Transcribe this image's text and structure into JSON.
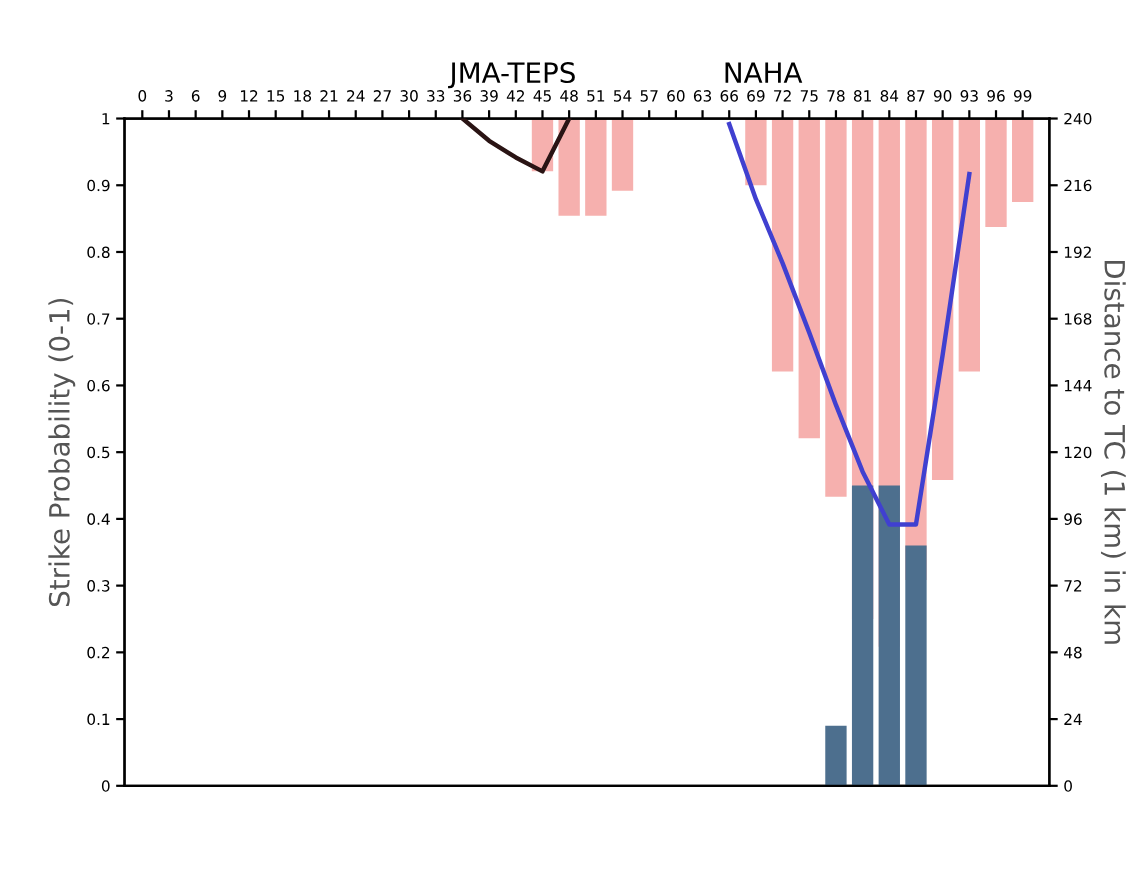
{
  "chart_data": {
    "type": "bar",
    "title": "JMA-TEPS",
    "subtitle": "NAHA",
    "ylabel": "Strike Probability (0-1)",
    "y2label": "Distance to TC (1 km) in km",
    "xlim": [
      -2,
      102
    ],
    "xticks": [
      0,
      3,
      6,
      9,
      12,
      15,
      18,
      21,
      24,
      27,
      30,
      33,
      36,
      39,
      42,
      45,
      48,
      51,
      54,
      57,
      60,
      63,
      66,
      69,
      72,
      75,
      78,
      81,
      84,
      87,
      90,
      93,
      96,
      99
    ],
    "ylim": [
      0,
      1
    ],
    "yticks": [
      0,
      0.1,
      0.2,
      0.3,
      0.4,
      0.5,
      0.6,
      0.7,
      0.8,
      0.9,
      1
    ],
    "y2lim": [
      0,
      240
    ],
    "y2ticks": [
      0,
      24,
      48,
      72,
      96,
      120,
      144,
      168,
      192,
      216,
      240
    ],
    "grid": false,
    "legend": false,
    "series": [
      {
        "axis": "y2",
        "color": "#f6b0ae",
        "x": [
          45,
          48,
          51,
          54,
          69,
          72,
          75,
          78,
          81,
          84,
          87,
          90,
          93,
          96,
          99
        ],
        "base": [
          221,
          205,
          205,
          214,
          216,
          149,
          125,
          104,
          60,
          50,
          74,
          110,
          149,
          201,
          210
        ],
        "values": [
          19,
          35,
          35,
          26,
          24,
          91,
          115,
          136,
          180,
          190,
          166,
          130,
          91,
          39,
          30
        ]
      },
      {
        "axis": "y",
        "color": "#4d6f8e",
        "x": [
          78,
          81,
          84,
          87
        ],
        "values": [
          0.09,
          0.45,
          0.45,
          0.36
        ]
      },
      {
        "type": "line",
        "axis": "y2",
        "color": "#2a1414",
        "x": [
          36,
          39,
          42,
          45,
          48
        ],
        "values": [
          240,
          232,
          226,
          221,
          240
        ]
      },
      {
        "type": "line",
        "axis": "y2",
        "color": "#4040d0",
        "x": [
          66,
          69,
          72,
          75,
          78,
          81,
          84,
          87,
          90,
          93
        ],
        "values": [
          238,
          211,
          188,
          163,
          137,
          113,
          94,
          94,
          155,
          220
        ]
      }
    ]
  }
}
